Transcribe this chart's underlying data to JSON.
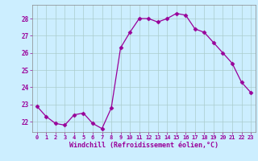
{
  "x": [
    0,
    1,
    2,
    3,
    4,
    5,
    6,
    7,
    8,
    9,
    10,
    11,
    12,
    13,
    14,
    15,
    16,
    17,
    18,
    19,
    20,
    21,
    22,
    23
  ],
  "y": [
    22.9,
    22.3,
    21.9,
    21.8,
    22.4,
    22.5,
    21.9,
    21.6,
    22.8,
    26.3,
    27.2,
    28.0,
    28.0,
    27.8,
    28.0,
    28.3,
    28.2,
    27.4,
    27.2,
    26.6,
    26.0,
    25.4,
    24.3,
    23.7
  ],
  "line_color": "#990099",
  "marker": "D",
  "marker_size": 2.5,
  "bg_color": "#cceeff",
  "grid_color": "#aacccc",
  "xlabel": "Windchill (Refroidissement éolien,°C)",
  "xlabel_color": "#990099",
  "tick_color": "#990099",
  "ylim_min": 21.4,
  "ylim_max": 28.8,
  "yticks": [
    22,
    23,
    24,
    25,
    26,
    27,
    28
  ],
  "xlim_min": -0.5,
  "xlim_max": 23.5
}
